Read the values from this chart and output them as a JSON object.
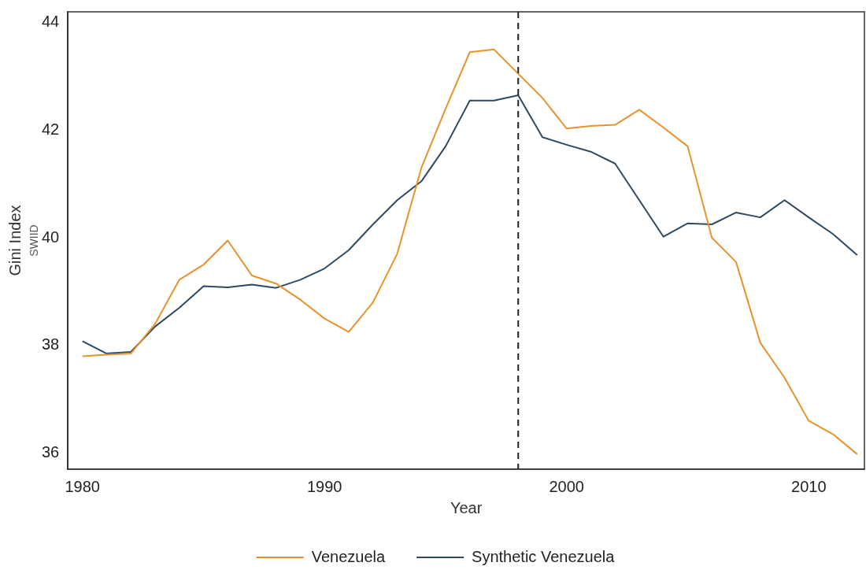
{
  "chart_data": {
    "type": "line",
    "xlabel": "Year",
    "ylabel": "Gini Index",
    "annotations": [
      "SWIID"
    ],
    "x": [
      1980,
      1981,
      1982,
      1983,
      1984,
      1985,
      1986,
      1987,
      1988,
      1989,
      1990,
      1991,
      1992,
      1993,
      1994,
      1995,
      1996,
      1997,
      1998,
      1999,
      2000,
      2001,
      2002,
      2003,
      2004,
      2005,
      2006,
      2007,
      2008,
      2009,
      2010,
      2011,
      2012
    ],
    "series": [
      {
        "name": "Venezuela",
        "color": "#e8922c",
        "values": [
          37.8,
          37.83,
          37.85,
          38.4,
          39.22,
          39.5,
          39.95,
          39.3,
          39.15,
          38.85,
          38.5,
          38.25,
          38.8,
          39.7,
          41.3,
          42.4,
          43.45,
          43.5,
          43.05,
          42.6,
          42.03,
          42.08,
          42.1,
          42.38,
          42.05,
          41.7,
          40.0,
          39.55,
          38.05,
          37.4,
          36.6,
          36.35,
          35.98
        ]
      },
      {
        "name": "Synthetic Venezuela",
        "color": "#2e4a62",
        "values": [
          38.08,
          37.85,
          37.88,
          38.35,
          38.7,
          39.1,
          39.08,
          39.13,
          39.07,
          39.22,
          39.43,
          39.77,
          40.25,
          40.7,
          41.05,
          41.7,
          42.55,
          42.55,
          42.65,
          41.87,
          41.73,
          41.6,
          41.38,
          40.7,
          40.02,
          40.27,
          40.25,
          40.47,
          40.38,
          40.7,
          40.38,
          40.07,
          39.68
        ]
      }
    ],
    "xlim": [
      1979.4,
      2012.3
    ],
    "xticks": [
      1980,
      1990,
      2000,
      2010
    ],
    "ylim": [
      35.7,
      44.2
    ],
    "yticks": [
      36,
      38,
      40,
      42,
      44
    ],
    "ref_lines": [
      {
        "axis": "x",
        "value": 1998,
        "color": "#222222",
        "line_style": "dashed"
      }
    ],
    "grid": false,
    "legend": "bottom",
    "marker": "none",
    "line_style": "solid"
  }
}
